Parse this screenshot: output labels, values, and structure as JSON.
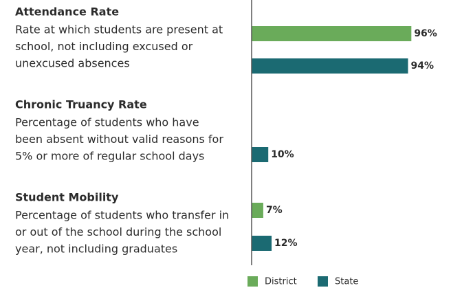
{
  "chart_data": {
    "type": "bar",
    "orientation": "horizontal",
    "categories": [
      "Attendance Rate",
      "Chronic Truancy Rate",
      "Student Mobility"
    ],
    "descriptions": [
      [
        "Rate at which students are present at",
        "school, not including excused or",
        "unexcused absences"
      ],
      [
        "Percentage of students who have",
        "been absent without valid reasons for",
        "5% or more of regular school days"
      ],
      [
        "Percentage of students who transfer in",
        "or out of the school during the school",
        "year, not including graduates"
      ]
    ],
    "xlim": [
      0,
      100
    ],
    "series": [
      {
        "name": "District",
        "color": "#6aab5a",
        "values": [
          96,
          null,
          7
        ],
        "value_labels": [
          "96%",
          null,
          "7%"
        ]
      },
      {
        "name": "State",
        "color": "#1b6a72",
        "values": [
          94,
          10,
          12
        ],
        "value_labels": [
          "94%",
          "10%",
          "12%"
        ]
      }
    ],
    "legend": "bottom"
  }
}
